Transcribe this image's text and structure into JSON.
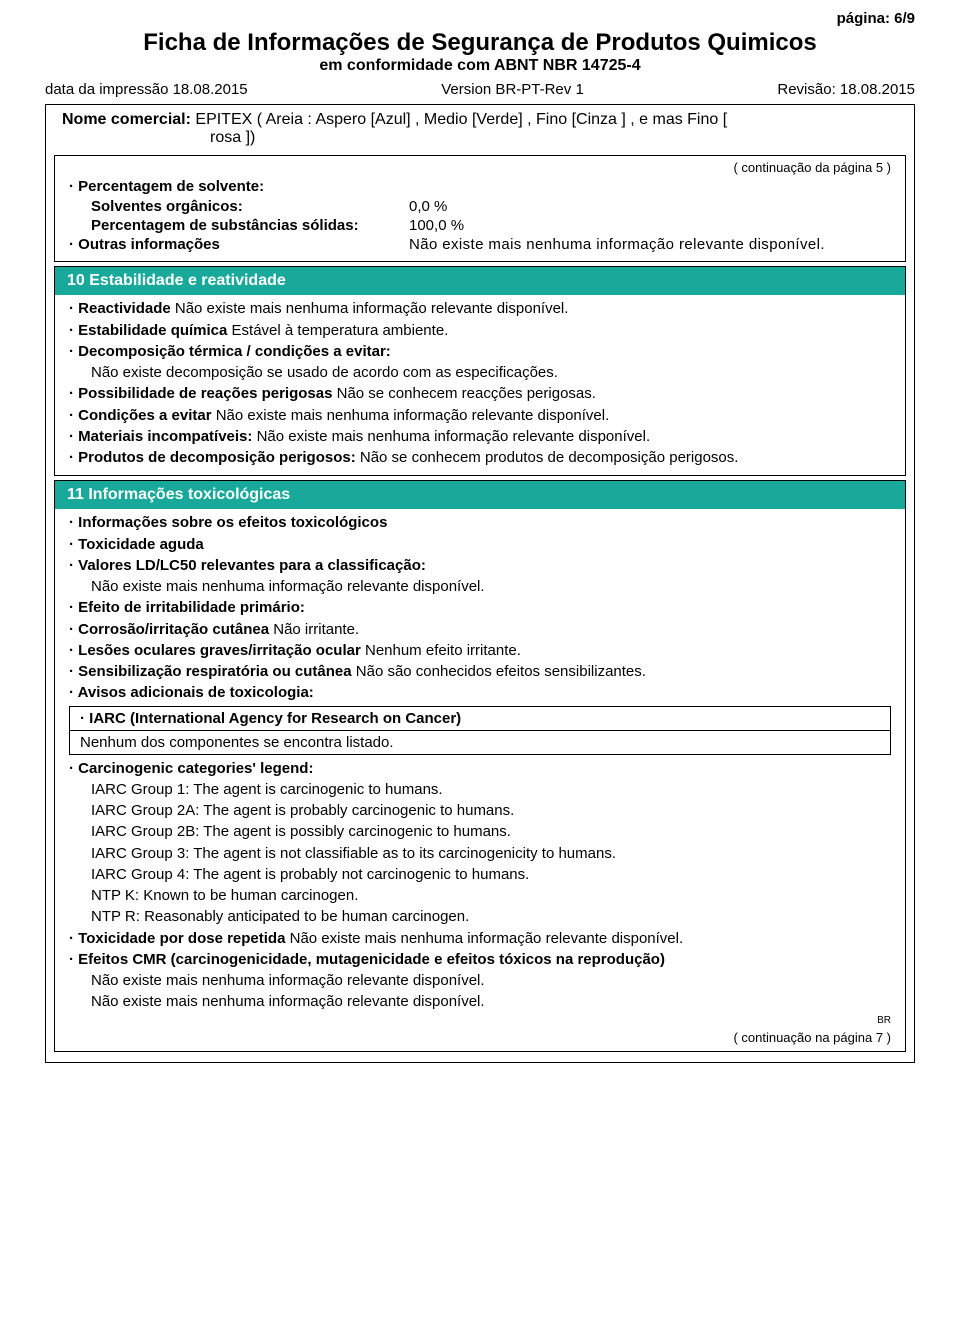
{
  "header": {
    "page_number": "página: 6/9",
    "title": "Ficha de Informações de Segurança de Produtos Quimicos",
    "subtitle": "em conformidade com ABNT NBR 14725-4",
    "print_date": "data da impressão 18.08.2015",
    "version": "Version BR-PT-Rev 1",
    "revision": "Revisão: 18.08.2015"
  },
  "product": {
    "label": "Nome comercial:",
    "name_line1": "EPITEX ( Areia : Aspero [Azul] , Medio [Verde] , Fino [Cinza ] , e mas Fino [",
    "name_line2": "rosa ])"
  },
  "continuation_top": "( continuação da página 5 )",
  "box1": {
    "row1_label": "· Percentagem de solvente:",
    "row1_sublabel": "Solventes orgânicos:",
    "row1_value": "0,0 %",
    "row2_label": "Percentagem de substâncias sólidas:",
    "row2_value": "100,0 %",
    "row3_label": "· Outras informações",
    "row3_value": "Não existe mais nenhuma informação relevante disponível."
  },
  "section10": {
    "title": "10 Estabilidade e reatividade",
    "items": [
      {
        "b": "· Reactividade ",
        "t": "Não existe mais nenhuma informação relevante disponível."
      },
      {
        "b": "· Estabilidade química ",
        "t": "Estável à temperatura ambiente."
      },
      {
        "b": "· Decomposição térmica / condições a evitar:",
        "t": ""
      },
      {
        "b": "",
        "t": "Não existe decomposição se usado de acordo com as especificações.",
        "indent": true
      },
      {
        "b": "· Possibilidade de reações perigosas ",
        "t": "Não se conhecem reacções perigosas."
      },
      {
        "b": "· Condições a evitar ",
        "t": "Não existe mais nenhuma informação relevante disponível."
      },
      {
        "b": "· Materiais incompatíveis: ",
        "t": "Não existe mais nenhuma informação relevante disponível."
      },
      {
        "b": "· Produtos de decomposição perigosos: ",
        "t": "Não se conhecem produtos de decomposição perigosos."
      }
    ]
  },
  "section11": {
    "title": "11 Informações toxicológicas",
    "pre_items": [
      {
        "b": "· Informações sobre os efeitos toxicológicos",
        "t": ""
      },
      {
        "b": "· Toxicidade aguda",
        "t": ""
      },
      {
        "b": "· Valores LD/LC50 relevantes para a classificação:",
        "t": ""
      },
      {
        "b": "",
        "t": "Não existe mais nenhuma informação relevante disponível.",
        "indent": true
      },
      {
        "b": "· Efeito de irritabilidade primário:",
        "t": ""
      },
      {
        "b": "· Corrosão/irritação cutânea ",
        "t": "Não irritante."
      },
      {
        "b": "· Lesões oculares graves/irritação ocular ",
        "t": "Nenhum efeito irritante."
      },
      {
        "b": "· Sensibilização respiratória ou cutânea ",
        "t": "Não são conhecidos efeitos sensibilizantes."
      },
      {
        "b": "· Avisos adicionais de toxicologia:",
        "t": ""
      }
    ],
    "iarc_box": {
      "header": "· IARC (International Agency for Research on Cancer)",
      "body": "Nenhum dos componentes se encontra listado."
    },
    "post_items": [
      {
        "b": "· Carcinogenic categories' legend:",
        "t": ""
      },
      {
        "b": "",
        "t": "IARC Group 1: The agent is carcinogenic to humans.",
        "indent": true
      },
      {
        "b": "",
        "t": "IARC Group 2A: The agent is probably carcinogenic to humans.",
        "indent": true
      },
      {
        "b": "",
        "t": "IARC Group 2B: The agent is possibly carcinogenic to humans.",
        "indent": true
      },
      {
        "b": "",
        "t": "IARC Group 3: The agent is not classifiable as to its carcinogenicity to humans.",
        "indent": true
      },
      {
        "b": "",
        "t": "IARC Group 4: The agent is probably not carcinogenic to humans.",
        "indent": true
      },
      {
        "b": "",
        "t": "NTP K: Known to be human carcinogen.",
        "indent": true
      },
      {
        "b": "",
        "t": "NTP R: Reasonably anticipated to be human carcinogen.",
        "indent": true
      },
      {
        "b": "· Toxicidade por dose repetida ",
        "t": "Não existe mais nenhuma informação relevante disponível."
      },
      {
        "b": "· Efeitos CMR (carcinogenicidade, mutagenicidade e efeitos tóxicos na reprodução)",
        "t": ""
      },
      {
        "b": "",
        "t": "Não existe mais nenhuma informação relevante disponível.",
        "indent": true
      },
      {
        "b": "",
        "t": "Não existe mais nenhuma informação relevante disponível.",
        "indent": true
      }
    ]
  },
  "footer_br": "BR",
  "continuation_bottom": "( continuação na página 7 )",
  "colors": {
    "section_bg": "#19a99a",
    "section_fg": "#ffffff",
    "text": "#000000",
    "border": "#000000",
    "page_bg": "#ffffff"
  }
}
